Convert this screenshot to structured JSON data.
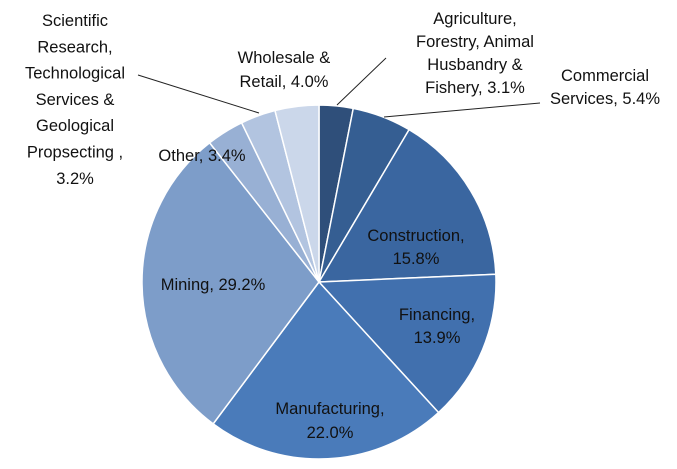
{
  "chart_data": {
    "type": "pie",
    "title": "",
    "legend": "none",
    "slices": [
      {
        "label": "Agriculture, Forestry, Animal Husbandry & Fishery",
        "value": 3.1,
        "lines": [
          "Agriculture,",
          "Forestry, Animal",
          "Husbandry &",
          "Fishery, 3.1%"
        ],
        "color": "#2f4f7a"
      },
      {
        "label": "Commercial Services",
        "value": 5.4,
        "lines": [
          "Commercial",
          "Services, 5.4%"
        ],
        "color": "#355e92"
      },
      {
        "label": "Construction",
        "value": 15.8,
        "lines": [
          "Construction,",
          "15.8%"
        ],
        "color": "#3a66a0"
      },
      {
        "label": "Financing",
        "value": 13.9,
        "lines": [
          "Financing,",
          "13.9%"
        ],
        "color": "#4170ae"
      },
      {
        "label": "Manufacturing",
        "value": 22.0,
        "lines": [
          "Manufacturing,",
          "22.0%"
        ],
        "color": "#4a7bba"
      },
      {
        "label": "Mining",
        "value": 29.2,
        "lines": [
          "Mining, 29.2%"
        ],
        "color": "#7d9dc9"
      },
      {
        "label": "Other",
        "value": 3.4,
        "lines": [
          "Other, 3.4%"
        ],
        "color": "#98b0d4"
      },
      {
        "label": "Scientific Research, Technological Services & Geological Propsecting",
        "value": 3.2,
        "lines": [
          "Scientific",
          "Research,",
          "Technological",
          "Services &",
          "Geological",
          "Propsecting ,",
          "3.2%"
        ],
        "color": "#b2c4e0"
      },
      {
        "label": "Wholesale & Retail",
        "value": 4.0,
        "lines": [
          "Wholesale &",
          "Retail, 4.0%"
        ],
        "color": "#cbd7ea"
      }
    ]
  }
}
